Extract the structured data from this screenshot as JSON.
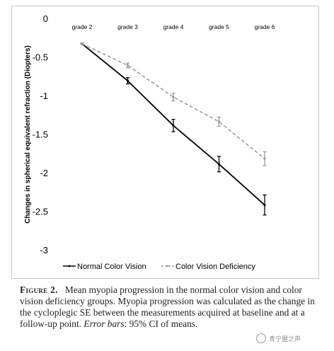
{
  "chart_data": {
    "type": "line",
    "title": "",
    "xlabel": "",
    "ylabel": "Changes in spherical equivalent refraction (Diopters)",
    "categories": [
      "grade 2",
      "grade 3",
      "grade 4",
      "grade 5",
      "grade 6"
    ],
    "ylim": [
      -3,
      0
    ],
    "yticks": [
      0,
      -0.5,
      -1,
      -1.5,
      -2,
      -2.5,
      -3
    ],
    "ytick_labels": [
      "0",
      "-0.5",
      "-1",
      "-1.5",
      "-2",
      "-2.5",
      "-3"
    ],
    "grid": false,
    "legend_position": "bottom",
    "series": [
      {
        "name": "Normal Color Vision",
        "color": "#000000",
        "style": "solid",
        "values": [
          -0.32,
          -0.8,
          -1.38,
          -1.88,
          -2.41
        ],
        "ci_low": [
          -0.33,
          -0.84,
          -1.46,
          -1.98,
          -2.54
        ],
        "ci_high": [
          -0.31,
          -0.76,
          -1.3,
          -1.78,
          -2.28
        ]
      },
      {
        "name": "Color Vision  Deficiency",
        "color": "#999999",
        "style": "dashed",
        "values": [
          -0.32,
          -0.6,
          -1.01,
          -1.33,
          -1.81
        ],
        "ci_low": [
          -0.33,
          -0.63,
          -1.06,
          -1.39,
          -1.9
        ],
        "ci_high": [
          -0.31,
          -0.57,
          -0.96,
          -1.27,
          -1.72
        ]
      }
    ]
  },
  "caption": {
    "label": "Figure 2.",
    "text_part1": "Mean myopia progression in the normal color vision and color vision deficiency groups. Myopia progression was calculated as the change in the cycloplegic SE between the measurements acquired at baseline and at a follow-up point.",
    "emph": "Error bars",
    "text_part2": ": 95% CI of means."
  },
  "watermark": {
    "text": "青宁盟之声"
  }
}
